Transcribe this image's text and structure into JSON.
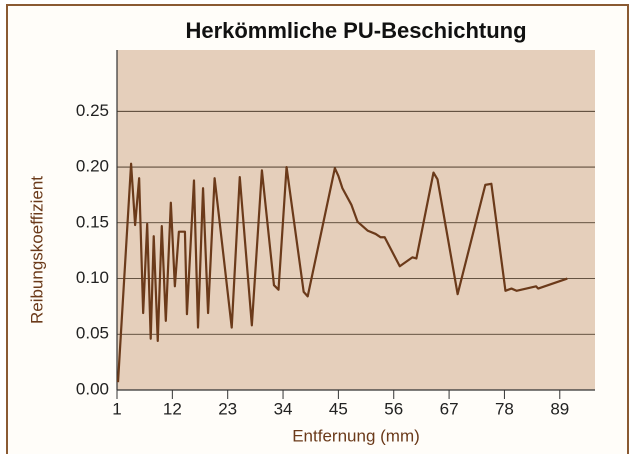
{
  "chart_data": {
    "type": "line",
    "title": "Herkömmliche PU-Beschichtung",
    "xlabel": "Entfernung (mm)",
    "ylabel": "Reibungskoeffizient",
    "x": [
      1.2,
      3.8,
      4.6,
      5.4,
      6.2,
      7.0,
      7.7,
      8.3,
      9.1,
      9.9,
      10.7,
      11.7,
      12.5,
      13.3,
      14.5,
      14.9,
      16.3,
      17.1,
      18.1,
      19.1,
      20.4,
      23.8,
      25.4,
      27.8,
      29.8,
      32.2,
      33.1,
      34.7,
      38.1,
      38.9,
      44.3,
      45.0,
      45.8,
      47.6,
      48.8,
      50.8,
      52.4,
      53.4,
      54.2,
      57.2,
      59.7,
      60.5,
      63.9,
      64.7,
      68.7,
      74.2,
      75.4,
      78.2,
      79.4,
      80.4,
      84.3,
      84.7,
      90.5
    ],
    "series": [
      {
        "name": "Reibungskoeffizient",
        "color": "#6b3a1a",
        "values": [
          0.007,
          0.203,
          0.148,
          0.19,
          0.069,
          0.149,
          0.046,
          0.138,
          0.044,
          0.147,
          0.062,
          0.168,
          0.093,
          0.142,
          0.142,
          0.068,
          0.188,
          0.056,
          0.181,
          0.069,
          0.19,
          0.056,
          0.191,
          0.058,
          0.197,
          0.094,
          0.09,
          0.2,
          0.088,
          0.084,
          0.199,
          0.192,
          0.181,
          0.166,
          0.151,
          0.143,
          0.14,
          0.137,
          0.137,
          0.111,
          0.119,
          0.118,
          0.195,
          0.189,
          0.086,
          0.184,
          0.185,
          0.089,
          0.091,
          0.089,
          0.093,
          0.091,
          0.1
        ]
      }
    ],
    "xlim": [
      1,
      96
    ],
    "xticks": [
      1,
      12,
      23,
      34,
      45,
      56,
      67,
      78,
      89
    ],
    "ylim": [
      0,
      0.305
    ],
    "yticks": [
      {
        "value": 0,
        "label": "0.00"
      },
      0.05,
      {
        "value": 0.1,
        "label": "0.10"
      },
      0.15,
      {
        "value": 0.2,
        "label": "0.20"
      },
      0.25
    ],
    "grid": true,
    "plot_color": "#e5cfbb"
  }
}
